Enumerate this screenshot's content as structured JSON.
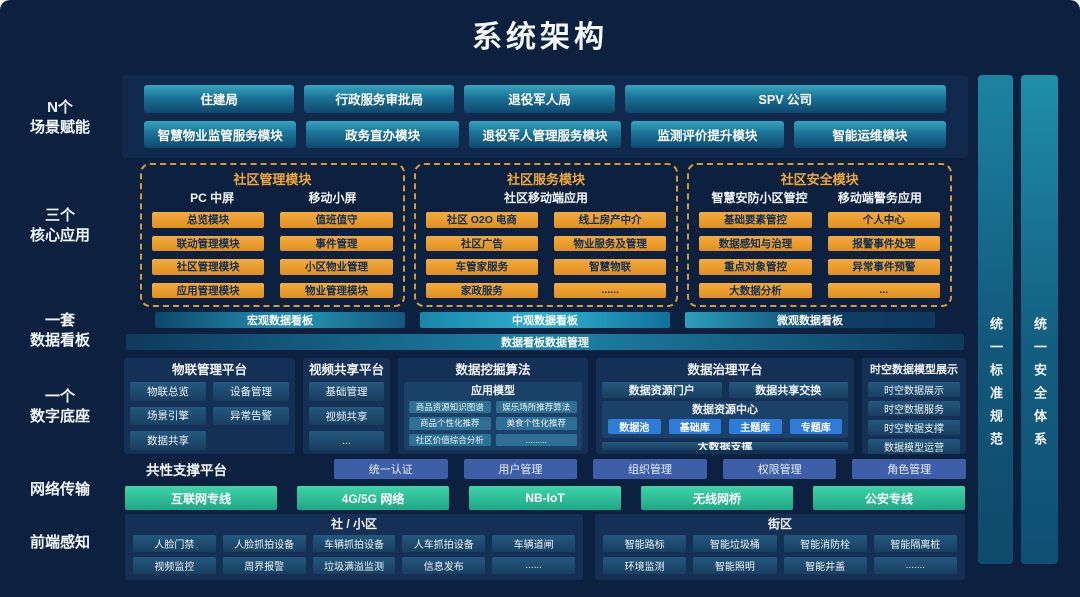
{
  "title": "系统架构",
  "sidebar": {
    "scene": "N个\n场景赋能",
    "core": "三个\n核心应用",
    "board": "一套\n数据看板",
    "base": "一个\n数字底座",
    "network": "网络传输",
    "sensing": "前端感知"
  },
  "right_bars": {
    "standard": "统一标准规范",
    "security": "统一安全体系"
  },
  "colors": {
    "background": "#0c2140",
    "teal_accent": "#2aa3bd",
    "orange_accent": "#eda12f",
    "green_accent": "#2fc9a0",
    "blue_accent": "#2e7cd8"
  },
  "scene": {
    "row1": [
      "住建局",
      "行政服务审批局",
      "退役军人局",
      "SPV 公司"
    ],
    "row2": [
      "智慧物业监管服务模块",
      "政务直办模块",
      "退役军人管理服务模块",
      "监测评价提升模块",
      "智能运维模块"
    ]
  },
  "core": {
    "boxes": [
      {
        "title": "社区管理模块",
        "header_left": "PC 中屏",
        "header_right": "移动小屏",
        "buttons": [
          "总览模块",
          "值班值守",
          "联动管理模块",
          "事件管理",
          "社区管理模块",
          "小区物业管理",
          "应用管理模块",
          "物业管理模块"
        ]
      },
      {
        "title": "社区服务模块",
        "header": "社区移动端应用",
        "buttons": [
          "社区 O2O 电商",
          "线上房产中介",
          "社区广告",
          "物业服务及管理",
          "车管家服务",
          "智慧物联",
          "家政服务",
          "......"
        ]
      },
      {
        "title": "社区安全模块",
        "header_left": "智慧安防小区管控",
        "header_right": "移动端警务应用",
        "buttons": [
          "基础要素管控",
          "个人中心",
          "数据感知与治理",
          "报警事件处理",
          "重点对象管控",
          "异常事件预警",
          "大数据分析",
          "..."
        ]
      }
    ]
  },
  "board": {
    "items": [
      "宏观数据看板",
      "中观数据看板",
      "微观数据看板"
    ],
    "manage": "数据看板数据管理"
  },
  "base": {
    "iot": {
      "title": "物联管理平台",
      "buttons": [
        "物联总览",
        "设备管理",
        "场景引擎",
        "异常告警",
        "数据共享"
      ]
    },
    "video": {
      "title": "视频共享平台",
      "buttons": [
        "基础管理",
        "视频共享",
        "..."
      ]
    },
    "mining": {
      "title": "数据挖掘算法",
      "model_title": "应用模型",
      "buttons": [
        "商品资源知识图谱",
        "娱乐场所推荐算法",
        "商品个性化推荐",
        "美食个性化推荐",
        "社区价值综合分析",
        "........."
      ]
    },
    "governance": {
      "title": "数据治理平台",
      "portal": "数据资源门户",
      "exchange": "数据共享交换",
      "center_title": "数据资源中心",
      "libs": [
        "数据池",
        "基础库",
        "主题库",
        "专题库"
      ],
      "support": "大数据支撑"
    },
    "spatiotemporal": {
      "title": "时空数据模型展示",
      "buttons": [
        "时空数据展示",
        "时空数据服务",
        "时空数据支撑",
        "数据模型运营"
      ]
    },
    "common": {
      "label": "共性支撑平台",
      "buttons": [
        "统一认证",
        "用户管理",
        "组织管理",
        "权限管理",
        "角色管理"
      ]
    }
  },
  "network": {
    "buttons": [
      "互联网专线",
      "4G/5G  网络",
      "NB-IoT",
      "无线网桥",
      "公安专线"
    ]
  },
  "sensing": {
    "community": {
      "title": "社 / 小区",
      "buttons": [
        "人脸门禁",
        "人脸抓拍设备",
        "车辆抓拍设备",
        "人车抓拍设备",
        "车辆道闸",
        "视频监控",
        "周界报警",
        "垃圾满溢监测",
        "信息发布",
        "......"
      ]
    },
    "street": {
      "title": "街区",
      "buttons": [
        "智能路标",
        "智能垃圾桶",
        "智能消防栓",
        "智能隔离桩",
        "环境监测",
        "智能照明",
        "智能井盖",
        "......."
      ]
    }
  }
}
